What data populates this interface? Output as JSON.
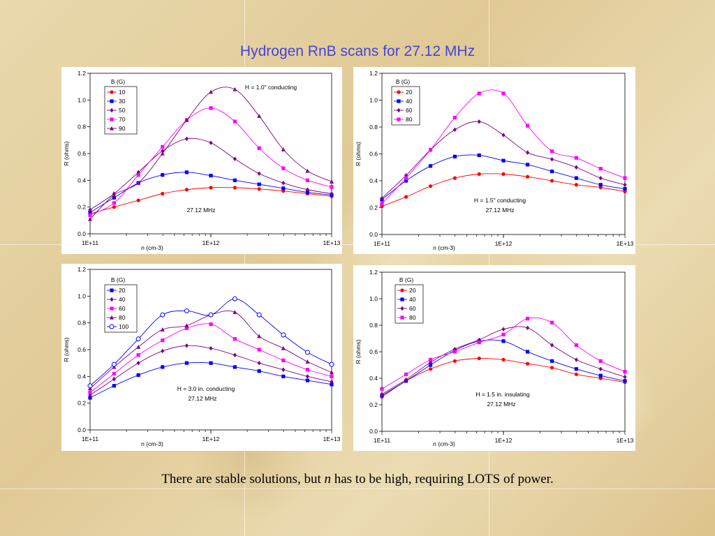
{
  "slide": {
    "title": "Hydrogen RnB scans for 27.12 MHz",
    "caption_before": "There are stable solutions, but ",
    "caption_italic": "n",
    "caption_after": " has to be high, requiring LOTS of power."
  },
  "chart_data": [
    {
      "type": "line",
      "xlabel": "n (cm-3)",
      "ylabel": "R (ohms)",
      "xscale": "log",
      "xlim": [
        100000000000.0,
        10000000000000.0
      ],
      "ylim": [
        0,
        1.2
      ],
      "x_ticks": [
        "1E+11",
        "1E+12",
        "1E+13"
      ],
      "y_ticks": [
        "0.0",
        "0.2",
        "0.4",
        "0.6",
        "0.8",
        "1.0",
        "1.2"
      ],
      "legend_title": "B (G)",
      "legend_position": "top-left",
      "annotations": [
        "H = 1.0\" conducting",
        "27.12 MHz"
      ],
      "series": [
        {
          "name": "10",
          "color": "#ff0000",
          "marker": "circle",
          "x": [
            100000000000.0,
            158000000000.0,
            251000000000.0,
            398000000000.0,
            631000000000.0,
            1000000000000.0,
            1580000000000.0,
            2510000000000.0,
            3980000000000.0,
            6310000000000.0,
            10000000000000.0
          ],
          "values": [
            0.15,
            0.2,
            0.25,
            0.3,
            0.33,
            0.345,
            0.345,
            0.335,
            0.32,
            0.3,
            0.28
          ]
        },
        {
          "name": "30",
          "color": "#0000ff",
          "marker": "square",
          "x": [
            100000000000.0,
            158000000000.0,
            251000000000.0,
            398000000000.0,
            631000000000.0,
            1000000000000.0,
            1580000000000.0,
            2510000000000.0,
            3980000000000.0,
            6310000000000.0,
            10000000000000.0
          ],
          "values": [
            0.16,
            0.27,
            0.38,
            0.44,
            0.46,
            0.435,
            0.4,
            0.37,
            0.34,
            0.31,
            0.29
          ]
        },
        {
          "name": "50",
          "color": "#800080",
          "marker": "diamond",
          "x": [
            100000000000.0,
            158000000000.0,
            251000000000.0,
            398000000000.0,
            631000000000.0,
            1000000000000.0,
            1580000000000.0,
            2510000000000.0,
            3980000000000.0,
            6310000000000.0,
            10000000000000.0
          ],
          "values": [
            0.18,
            0.3,
            0.46,
            0.62,
            0.71,
            0.68,
            0.56,
            0.45,
            0.38,
            0.33,
            0.3
          ]
        },
        {
          "name": "70",
          "color": "#ff00ff",
          "marker": "square",
          "x": [
            100000000000.0,
            158000000000.0,
            251000000000.0,
            398000000000.0,
            631000000000.0,
            1000000000000.0,
            1580000000000.0,
            2510000000000.0,
            3980000000000.0,
            6310000000000.0,
            10000000000000.0
          ],
          "values": [
            0.14,
            0.23,
            0.44,
            0.65,
            0.85,
            0.94,
            0.84,
            0.64,
            0.49,
            0.4,
            0.35
          ]
        },
        {
          "name": "90",
          "color": "#800080",
          "marker": "triangle",
          "x": [
            100000000000.0,
            158000000000.0,
            251000000000.0,
            398000000000.0,
            631000000000.0,
            1000000000000.0,
            1580000000000.0,
            2510000000000.0,
            3980000000000.0,
            6310000000000.0,
            10000000000000.0
          ],
          "values": [
            0.11,
            0.29,
            0.38,
            0.6,
            0.85,
            1.06,
            1.08,
            0.88,
            0.63,
            0.47,
            0.39
          ]
        }
      ]
    },
    {
      "type": "line",
      "xlabel": "n (cm-3)",
      "ylabel": "R (ohms)",
      "xscale": "log",
      "xlim": [
        100000000000.0,
        10000000000000.0
      ],
      "ylim": [
        0,
        1.2
      ],
      "x_ticks": [
        "1E+11",
        "1E+12",
        "1E+13"
      ],
      "y_ticks": [
        "0.0",
        "0.2",
        "0.4",
        "0.6",
        "0.8",
        "1.0",
        "1.2"
      ],
      "legend_title": "B (G)",
      "legend_position": "top-left",
      "annotations": [
        "H = 1.5\" conducting",
        "27.12 MHz"
      ],
      "series": [
        {
          "name": "20",
          "color": "#ff0000",
          "marker": "circle",
          "x": [
            100000000000.0,
            158000000000.0,
            251000000000.0,
            398000000000.0,
            631000000000.0,
            1000000000000.0,
            1580000000000.0,
            2510000000000.0,
            3980000000000.0,
            6310000000000.0,
            10000000000000.0
          ],
          "values": [
            0.21,
            0.28,
            0.36,
            0.42,
            0.45,
            0.45,
            0.43,
            0.4,
            0.37,
            0.35,
            0.32
          ]
        },
        {
          "name": "40",
          "color": "#0000ff",
          "marker": "square",
          "x": [
            100000000000.0,
            158000000000.0,
            251000000000.0,
            398000000000.0,
            631000000000.0,
            1000000000000.0,
            1580000000000.0,
            2510000000000.0,
            3980000000000.0,
            6310000000000.0,
            10000000000000.0
          ],
          "values": [
            0.26,
            0.4,
            0.51,
            0.58,
            0.59,
            0.55,
            0.52,
            0.47,
            0.42,
            0.37,
            0.34
          ]
        },
        {
          "name": "60",
          "color": "#800080",
          "marker": "diamond",
          "x": [
            100000000000.0,
            158000000000.0,
            251000000000.0,
            398000000000.0,
            631000000000.0,
            1000000000000.0,
            1580000000000.0,
            2510000000000.0,
            3980000000000.0,
            6310000000000.0,
            10000000000000.0
          ],
          "values": [
            0.27,
            0.44,
            0.63,
            0.78,
            0.84,
            0.74,
            0.61,
            0.56,
            0.5,
            0.42,
            0.37
          ]
        },
        {
          "name": "80",
          "color": "#ff00ff",
          "marker": "square",
          "x": [
            100000000000.0,
            158000000000.0,
            251000000000.0,
            398000000000.0,
            631000000000.0,
            1000000000000.0,
            1580000000000.0,
            2510000000000.0,
            3980000000000.0,
            6310000000000.0,
            10000000000000.0
          ],
          "values": [
            0.23,
            0.42,
            0.63,
            0.87,
            1.05,
            1.05,
            0.81,
            0.62,
            0.57,
            0.49,
            0.42
          ]
        }
      ]
    },
    {
      "type": "line",
      "xlabel": "n (cm-3)",
      "ylabel": "R (ohms)",
      "xscale": "log",
      "xlim": [
        100000000000.0,
        10000000000000.0
      ],
      "ylim": [
        0,
        1.2
      ],
      "x_ticks": [
        "1E+11",
        "1E+12",
        "1E+13"
      ],
      "y_ticks": [
        "0.0",
        "0.2",
        "0.4",
        "0.6",
        "0.8",
        "1.0",
        "1.2"
      ],
      "legend_title": "B (G)",
      "legend_position": "top-left",
      "annotations": [
        "H = 3.0 in. conducting",
        "27.12 MHz"
      ],
      "series": [
        {
          "name": "20",
          "color": "#0000ff",
          "marker": "square",
          "x": [
            100000000000.0,
            158000000000.0,
            251000000000.0,
            398000000000.0,
            631000000000.0,
            1000000000000.0,
            1580000000000.0,
            2510000000000.0,
            3980000000000.0,
            6310000000000.0,
            10000000000000.0
          ],
          "values": [
            0.24,
            0.33,
            0.41,
            0.47,
            0.5,
            0.5,
            0.47,
            0.44,
            0.4,
            0.37,
            0.34
          ]
        },
        {
          "name": "40",
          "color": "#800080",
          "marker": "diamond",
          "x": [
            100000000000.0,
            158000000000.0,
            251000000000.0,
            398000000000.0,
            631000000000.0,
            1000000000000.0,
            1580000000000.0,
            2510000000000.0,
            3980000000000.0,
            6310000000000.0,
            10000000000000.0
          ],
          "values": [
            0.26,
            0.38,
            0.5,
            0.59,
            0.63,
            0.61,
            0.56,
            0.5,
            0.45,
            0.4,
            0.36
          ]
        },
        {
          "name": "60",
          "color": "#ff00ff",
          "marker": "square",
          "x": [
            100000000000.0,
            158000000000.0,
            251000000000.0,
            398000000000.0,
            631000000000.0,
            1000000000000.0,
            1580000000000.0,
            2510000000000.0,
            3980000000000.0,
            6310000000000.0,
            10000000000000.0
          ],
          "values": [
            0.28,
            0.42,
            0.56,
            0.67,
            0.76,
            0.79,
            0.68,
            0.6,
            0.52,
            0.45,
            0.4
          ]
        },
        {
          "name": "80",
          "color": "#800080",
          "marker": "triangle",
          "x": [
            100000000000.0,
            158000000000.0,
            251000000000.0,
            398000000000.0,
            631000000000.0,
            1000000000000.0,
            1580000000000.0,
            2510000000000.0,
            3980000000000.0,
            6310000000000.0,
            10000000000000.0
          ],
          "values": [
            0.31,
            0.47,
            0.62,
            0.75,
            0.78,
            0.86,
            0.88,
            0.7,
            0.61,
            0.51,
            0.43
          ]
        },
        {
          "name": "100",
          "color": "#0000ff",
          "marker": "circle-open",
          "x": [
            100000000000.0,
            158000000000.0,
            251000000000.0,
            398000000000.0,
            631000000000.0,
            1000000000000.0,
            1580000000000.0,
            2510000000000.0,
            3980000000000.0,
            6310000000000.0,
            10000000000000.0
          ],
          "values": [
            0.33,
            0.49,
            0.68,
            0.86,
            0.89,
            0.86,
            0.98,
            0.86,
            0.71,
            0.58,
            0.49
          ]
        }
      ]
    },
    {
      "type": "line",
      "xlabel": "n (cm-3)",
      "ylabel": "R (ohms)",
      "xscale": "log",
      "xlim": [
        100000000000.0,
        10000000000000.0
      ],
      "ylim": [
        0,
        1.2
      ],
      "x_ticks": [
        "1E+11",
        "1E+12",
        "1E+13"
      ],
      "y_ticks": [
        "0.0",
        "0.2",
        "0.4",
        "0.6",
        "0.8",
        "1.0",
        "1.2"
      ],
      "legend_title": "B (G)",
      "legend_position": "top-left",
      "annotations": [
        "H = 1.5 in. insulating",
        "27.12 MHz"
      ],
      "series": [
        {
          "name": "20",
          "color": "#ff0000",
          "marker": "circle",
          "x": [
            100000000000.0,
            158000000000.0,
            251000000000.0,
            398000000000.0,
            631000000000.0,
            1000000000000.0,
            1580000000000.0,
            2510000000000.0,
            3980000000000.0,
            6310000000000.0,
            10000000000000.0
          ],
          "values": [
            0.26,
            0.38,
            0.47,
            0.53,
            0.55,
            0.54,
            0.51,
            0.48,
            0.43,
            0.4,
            0.37
          ]
        },
        {
          "name": "40",
          "color": "#0000ff",
          "marker": "square",
          "x": [
            100000000000.0,
            158000000000.0,
            251000000000.0,
            398000000000.0,
            631000000000.0,
            1000000000000.0,
            1580000000000.0,
            2510000000000.0,
            3980000000000.0,
            6310000000000.0,
            10000000000000.0
          ],
          "values": [
            0.27,
            0.38,
            0.5,
            0.61,
            0.68,
            0.68,
            0.6,
            0.53,
            0.47,
            0.42,
            0.38
          ]
        },
        {
          "name": "60",
          "color": "#800080",
          "marker": "diamond",
          "x": [
            100000000000.0,
            158000000000.0,
            251000000000.0,
            398000000000.0,
            631000000000.0,
            1000000000000.0,
            1580000000000.0,
            2510000000000.0,
            3980000000000.0,
            6310000000000.0,
            10000000000000.0
          ],
          "values": [
            0.28,
            0.39,
            0.52,
            0.62,
            0.69,
            0.77,
            0.78,
            0.65,
            0.54,
            0.47,
            0.41
          ]
        },
        {
          "name": "80",
          "color": "#ff00ff",
          "marker": "square",
          "x": [
            100000000000.0,
            158000000000.0,
            251000000000.0,
            398000000000.0,
            631000000000.0,
            1000000000000.0,
            1580000000000.0,
            2510000000000.0,
            3980000000000.0,
            6310000000000.0,
            10000000000000.0
          ],
          "values": [
            0.32,
            0.43,
            0.54,
            0.6,
            0.67,
            0.73,
            0.85,
            0.82,
            0.65,
            0.53,
            0.45
          ]
        }
      ]
    }
  ]
}
